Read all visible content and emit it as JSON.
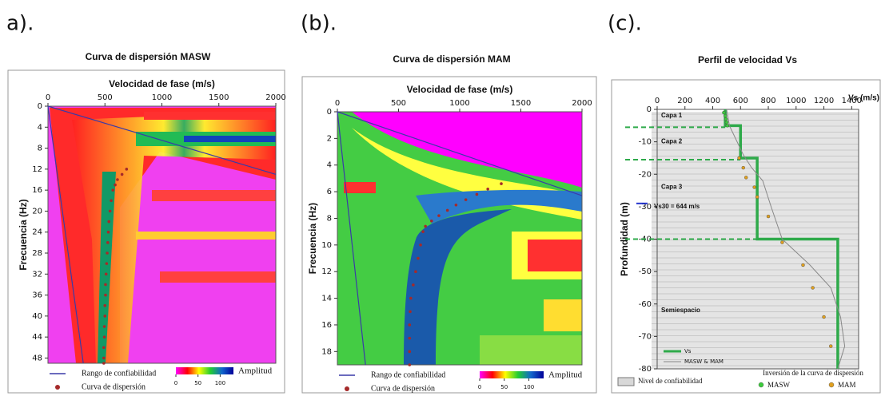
{
  "chart_data": [
    {
      "type": "scatter",
      "panel_label": "a).",
      "title": "Curva de dispersión MASW",
      "x_label": "Velocidad de fase (m/s)",
      "y_label": "Frecuencia (Hz)",
      "xlim": [
        0,
        2000
      ],
      "xticks": [
        0,
        500,
        1000,
        1500,
        2000
      ],
      "ylim": [
        0,
        49
      ],
      "yticks": [
        0,
        4,
        8,
        12,
        16,
        20,
        24,
        28,
        32,
        36,
        40,
        44,
        48
      ],
      "y_inverted": true,
      "reliability": {
        "name": "Rango de confiabilidad",
        "color": "#3a3aa8",
        "lines": [
          {
            "x": [
              0,
              2000
            ],
            "values": [
              0,
              13
            ]
          },
          {
            "x": [
              0,
              310
            ],
            "values": [
              0,
              49
            ]
          }
        ]
      },
      "series": [
        {
          "name": "Curva de dispersión",
          "color": "#a52a2a",
          "x": [
            690,
            650,
            610,
            590,
            570,
            555,
            545,
            535,
            530,
            525,
            520,
            515,
            510,
            505,
            505,
            500,
            500,
            495,
            495,
            490,
            490,
            490
          ],
          "values": [
            12,
            13,
            14,
            15,
            16,
            18,
            20,
            22,
            24,
            26,
            28,
            30,
            32,
            34,
            36,
            38,
            40,
            42,
            44,
            46,
            48,
            49
          ]
        }
      ],
      "colorbar": {
        "label": "Amplitud",
        "lim": [
          0,
          130
        ],
        "ticks": [
          0,
          50,
          100
        ]
      }
    },
    {
      "type": "scatter",
      "panel_label": "(b).",
      "title": "Curva de dispersión MAM",
      "x_label": "Velocidad de fase (m/s)",
      "y_label": "Frecuencia (Hz)",
      "xlim": [
        0,
        2000
      ],
      "xticks": [
        0,
        500,
        1000,
        1500,
        2000
      ],
      "ylim": [
        0,
        19
      ],
      "yticks": [
        0,
        2,
        4,
        6,
        8,
        10,
        12,
        14,
        16,
        18
      ],
      "y_inverted": true,
      "reliability": {
        "name": "Rango de confiabilidad",
        "color": "#3a3aa8",
        "lines": [
          {
            "x": [
              0,
              2000
            ],
            "values": [
              0,
              6.3
            ]
          },
          {
            "x": [
              0,
              230
            ],
            "values": [
              0,
              19
            ]
          }
        ]
      },
      "series": [
        {
          "name": "Curva de dispersión",
          "color": "#a52a2a",
          "x": [
            1340,
            1230,
            1140,
            1050,
            970,
            900,
            830,
            770,
            720,
            700,
            680,
            660,
            640,
            620,
            600,
            595,
            590,
            590,
            590,
            590
          ],
          "values": [
            5.4,
            5.8,
            6.2,
            6.6,
            7,
            7.4,
            7.8,
            8.2,
            8.6,
            9,
            10,
            11,
            12,
            13,
            14,
            15,
            16,
            17,
            18,
            19
          ]
        }
      ],
      "colorbar": {
        "label": "Amplitud",
        "lim": [
          0,
          130
        ],
        "ticks": [
          0,
          50,
          100
        ]
      }
    },
    {
      "type": "line",
      "panel_label": "(c).",
      "title": "Perfil de velocidad Vs",
      "x_label": "Vs (m/s)",
      "y_label": "Profundidad (m)",
      "xlim": [
        0,
        1450
      ],
      "xticks": [
        0,
        200,
        400,
        600,
        800,
        1000,
        1200,
        1400
      ],
      "ylim": [
        -80,
        0
      ],
      "yticks": [
        0,
        -10,
        -20,
        -30,
        -40,
        -50,
        -60,
        -70,
        -80
      ],
      "y_inverted": false,
      "layer_boundaries": [
        -5.5,
        -15.5,
        -40
      ],
      "annotations": [
        "Capa 1",
        "Capa 2",
        "Capa 3",
        "Vs30 = 644 m/s",
        "Semiespacio"
      ],
      "series": [
        {
          "name": "Vs",
          "color": "#2eaa4a",
          "style": "line",
          "x": [
            490,
            490,
            600,
            600,
            720,
            720,
            1300,
            1300
          ],
          "values": [
            0,
            -5,
            -5,
            -15,
            -15,
            -40,
            -40,
            -80
          ]
        },
        {
          "name": "MASW & MAM",
          "color": "#888888",
          "style": "thin",
          "x": [
            500,
            520,
            620,
            680,
            760,
            790,
            820,
            900,
            1100,
            1250,
            1320,
            1350,
            1300
          ],
          "values": [
            0,
            -5,
            -14,
            -18,
            -22,
            -26,
            -30,
            -40,
            -48,
            -55,
            -64,
            -73,
            -80
          ]
        },
        {
          "name": "MASW",
          "color": "#3ccc3c",
          "style": "points",
          "x": [
            480,
            490,
            495,
            500,
            505
          ],
          "values": [
            -1,
            -2,
            -3,
            -4,
            -5
          ]
        },
        {
          "name": "MAM",
          "color": "#e0a020",
          "style": "points",
          "x": [
            590,
            620,
            640,
            700,
            720,
            800,
            900,
            1050,
            1120,
            1200,
            1250
          ],
          "values": [
            -15,
            -18,
            -21,
            -24,
            -27,
            -33,
            -41,
            -48,
            -55,
            -64,
            -73
          ]
        }
      ],
      "legend_confidence": "Nivel de confiabilidad",
      "legend_inversion": "Inversión de la curva de dispersión"
    }
  ]
}
